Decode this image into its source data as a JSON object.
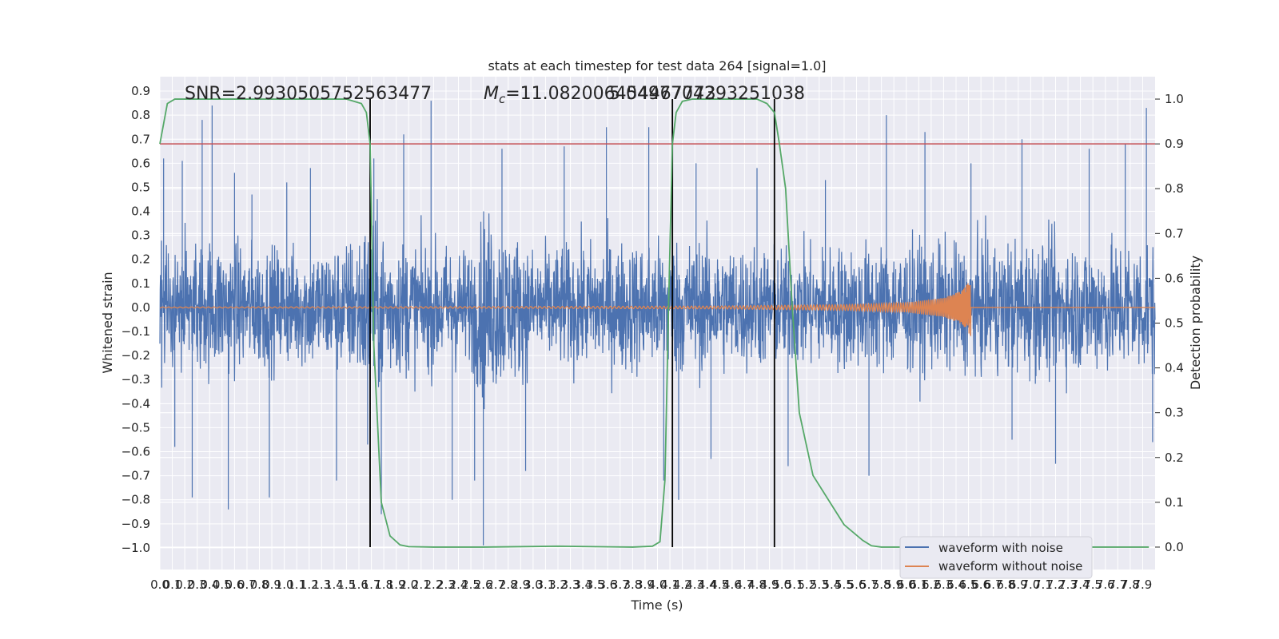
{
  "chart_data": {
    "type": "line",
    "title": "stats at each timestep for test data 264 [signal=1.0]",
    "xlabel": "Time (s)",
    "ylabel": "Whitened strain",
    "y2label": "Detection probability",
    "xlim": [
      0.0,
      8.0
    ],
    "ylim": [
      -1.09,
      0.96
    ],
    "y2lim": [
      -0.05,
      1.05
    ],
    "grid": true,
    "legend": {
      "placement": "bottom-right"
    },
    "x_ticks": [
      "0.0",
      "0.1",
      "0.2",
      "0.3",
      "0.4",
      "0.5",
      "0.6",
      "0.7",
      "0.8",
      "0.9",
      "1.0",
      "1.1",
      "1.2",
      "1.3",
      "1.4",
      "1.5",
      "1.6",
      "1.7",
      "1.8",
      "1.9",
      "2.0",
      "2.1",
      "2.2",
      "2.3",
      "2.4",
      "2.5",
      "2.6",
      "2.7",
      "2.8",
      "2.9",
      "3.0",
      "3.1",
      "3.2",
      "3.3",
      "3.4",
      "3.5",
      "3.6",
      "3.7",
      "3.8",
      "3.9",
      "4.0",
      "4.1",
      "4.2",
      "4.3",
      "4.4",
      "4.5",
      "4.6",
      "4.7",
      "4.8",
      "4.9",
      "5.0",
      "5.1",
      "5.2",
      "5.3",
      "5.4",
      "5.5",
      "5.6",
      "5.7",
      "5.8",
      "5.9",
      "6.0",
      "6.1",
      "6.2",
      "6.3",
      "6.4",
      "6.5",
      "6.6",
      "6.7",
      "6.8",
      "6.9",
      "7.0",
      "7.1",
      "7.2",
      "7.3",
      "7.4",
      "7.5",
      "7.6",
      "7.7",
      "7.8",
      "7.9"
    ],
    "y_ticks": [
      "0.9",
      "0.8",
      "0.7",
      "0.6",
      "0.5",
      "0.4",
      "0.3",
      "0.2",
      "0.1",
      "0.0",
      "−0.1",
      "−0.2",
      "−0.3",
      "−0.4",
      "−0.5",
      "−0.6",
      "−0.7",
      "−0.8",
      "−0.9",
      "−1.0"
    ],
    "y2_ticks": [
      "1.0",
      "0.9",
      "0.8",
      "0.7",
      "0.6",
      "0.5",
      "0.4",
      "0.3",
      "0.2",
      "0.1",
      "0.0"
    ],
    "annotations": {
      "snr": "SNR=2.9930505752563477",
      "mc_symbol": "M",
      "mc_subscript": "c",
      "mc_text": "=11.082006454467773",
      "overlap_text": "5.0497704293251038"
    },
    "threshold": {
      "y2": 0.9,
      "color": "#c44e52"
    },
    "vertical_markers": {
      "x": [
        1.69,
        4.12,
        4.94
      ],
      "color": "#000000"
    },
    "series": [
      {
        "name": "waveform with noise",
        "color": "#4c72b0",
        "kind": "noise",
        "envelope": [
          [
            0.0,
            0.38
          ],
          [
            0.4,
            0.44
          ],
          [
            1.0,
            0.38
          ],
          [
            1.5,
            0.42
          ],
          [
            1.69,
            0.6
          ],
          [
            1.9,
            0.44
          ],
          [
            2.5,
            0.38
          ],
          [
            2.6,
            0.62
          ],
          [
            3.0,
            0.38
          ],
          [
            3.6,
            0.42
          ],
          [
            4.1,
            0.44
          ],
          [
            4.5,
            0.42
          ],
          [
            5.0,
            0.38
          ],
          [
            5.5,
            0.4
          ],
          [
            6.0,
            0.42
          ],
          [
            6.5,
            0.4
          ],
          [
            7.0,
            0.44
          ],
          [
            7.5,
            0.42
          ],
          [
            8.0,
            0.44
          ]
        ],
        "spikes": [
          [
            0.03,
            0.62
          ],
          [
            0.12,
            -0.58
          ],
          [
            0.18,
            0.61
          ],
          [
            0.26,
            -0.79
          ],
          [
            0.34,
            0.78
          ],
          [
            0.42,
            0.84
          ],
          [
            0.55,
            -0.84
          ],
          [
            0.6,
            0.56
          ],
          [
            0.74,
            0.47
          ],
          [
            0.88,
            -0.79
          ],
          [
            1.02,
            0.52
          ],
          [
            1.21,
            0.58
          ],
          [
            1.42,
            -0.72
          ],
          [
            1.67,
            -0.57
          ],
          [
            1.72,
            0.62
          ],
          [
            1.78,
            -0.86
          ],
          [
            1.96,
            0.72
          ],
          [
            2.18,
            0.86
          ],
          [
            2.35,
            -0.8
          ],
          [
            2.53,
            -0.72
          ],
          [
            2.6,
            -0.99
          ],
          [
            2.75,
            0.66
          ],
          [
            2.94,
            -0.68
          ],
          [
            3.25,
            0.67
          ],
          [
            3.59,
            0.75
          ],
          [
            3.93,
            0.75
          ],
          [
            4.05,
            -0.72
          ],
          [
            4.17,
            -0.8
          ],
          [
            4.31,
            0.6
          ],
          [
            4.43,
            -0.63
          ],
          [
            4.8,
            0.58
          ],
          [
            5.05,
            -0.66
          ],
          [
            5.35,
            0.53
          ],
          [
            5.7,
            -0.7
          ],
          [
            5.84,
            0.8
          ],
          [
            6.15,
            0.73
          ],
          [
            6.52,
            0.6
          ],
          [
            6.85,
            -0.55
          ],
          [
            6.93,
            0.7
          ],
          [
            7.2,
            -0.65
          ],
          [
            7.47,
            0.66
          ],
          [
            7.76,
            0.68
          ],
          [
            7.93,
            0.83
          ],
          [
            7.98,
            -0.56
          ]
        ]
      },
      {
        "name": "waveform without noise",
        "color": "#dd8452",
        "kind": "chirp",
        "merger_time": 6.52,
        "amplitude_points": [
          [
            0.0,
            0.002
          ],
          [
            3.0,
            0.004
          ],
          [
            4.5,
            0.006
          ],
          [
            5.5,
            0.012
          ],
          [
            6.0,
            0.02
          ],
          [
            6.3,
            0.04
          ],
          [
            6.45,
            0.07
          ],
          [
            6.52,
            0.12
          ],
          [
            6.55,
            0.0
          ],
          [
            8.0,
            0.0
          ]
        ]
      },
      {
        "name": "detection probability",
        "color": "#55a868",
        "axis": "right",
        "x": [
          0.0,
          0.06,
          0.12,
          0.3,
          1.0,
          1.5,
          1.62,
          1.66,
          1.69,
          1.72,
          1.78,
          1.85,
          1.93,
          2.0,
          2.2,
          2.6,
          3.2,
          3.8,
          3.96,
          4.02,
          4.06,
          4.09,
          4.12,
          4.15,
          4.2,
          4.28,
          4.4,
          4.8,
          4.88,
          4.94,
          4.98,
          5.03,
          5.08,
          5.14,
          5.25,
          5.5,
          5.65,
          5.72,
          5.8,
          6.0,
          7.5,
          7.95
        ],
        "y": [
          0.9,
          0.99,
          1.0,
          1.0,
          1.0,
          1.0,
          0.99,
          0.97,
          0.9,
          0.45,
          0.1,
          0.025,
          0.005,
          0.001,
          0.0,
          0.0,
          0.002,
          0.0,
          0.002,
          0.012,
          0.15,
          0.55,
          0.9,
          0.97,
          0.995,
          1.0,
          1.0,
          1.0,
          0.99,
          0.97,
          0.9,
          0.8,
          0.55,
          0.3,
          0.16,
          0.05,
          0.015,
          0.003,
          0.0,
          0.0,
          0.0,
          0.0
        ]
      }
    ]
  }
}
